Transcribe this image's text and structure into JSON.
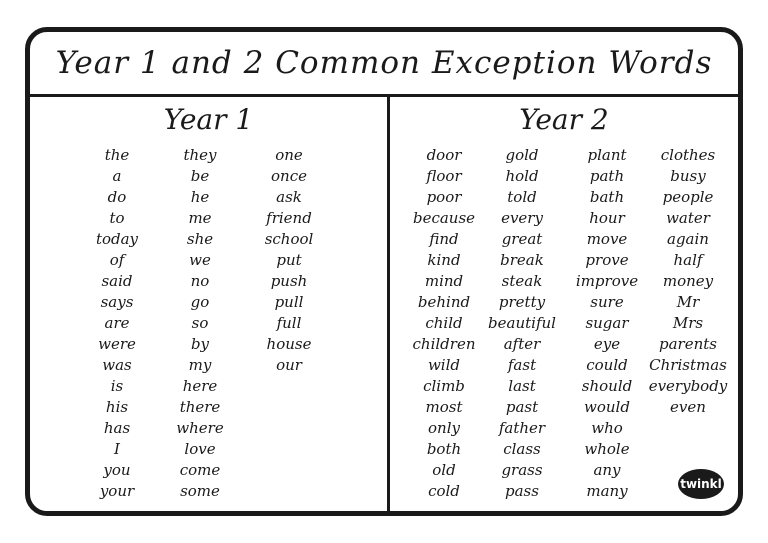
{
  "title": "Year 1 and 2 Common Exception Words",
  "year1": {
    "heading": "Year 1",
    "columns": [
      [
        "the",
        "a",
        "do",
        "to",
        "today",
        "of",
        "said",
        "says",
        "are",
        "were",
        "was",
        "is",
        "his",
        "has",
        "I",
        "you",
        "your"
      ],
      [
        "they",
        "be",
        "he",
        "me",
        "she",
        "we",
        "no",
        "go",
        "so",
        "by",
        "my",
        "here",
        "there",
        "where",
        "love",
        "come",
        "some"
      ],
      [
        "one",
        "once",
        "ask",
        "friend",
        "school",
        "put",
        "push",
        "pull",
        "full",
        "house",
        "our"
      ]
    ]
  },
  "year2": {
    "heading": "Year 2",
    "columns": [
      [
        "door",
        "floor",
        "poor",
        "because",
        "find",
        "kind",
        "mind",
        "behind",
        "child",
        "children",
        "wild",
        "climb",
        "most",
        "only",
        "both",
        "old",
        "cold"
      ],
      [
        "gold",
        "hold",
        "told",
        "every",
        "great",
        "break",
        "steak",
        "pretty",
        "beautiful",
        "after",
        "fast",
        "last",
        "past",
        "father",
        "class",
        "grass",
        "pass"
      ],
      [
        "plant",
        "path",
        "bath",
        "hour",
        "move",
        "prove",
        "improve",
        "sure",
        "sugar",
        "eye",
        "could",
        "should",
        "would",
        "who",
        "whole",
        "any",
        "many"
      ],
      [
        "clothes",
        "busy",
        "people",
        "water",
        "again",
        "half",
        "money",
        "Mr",
        "Mrs",
        "parents",
        "Christmas",
        "everybody",
        "even"
      ]
    ]
  },
  "logo_text": "twinkl"
}
